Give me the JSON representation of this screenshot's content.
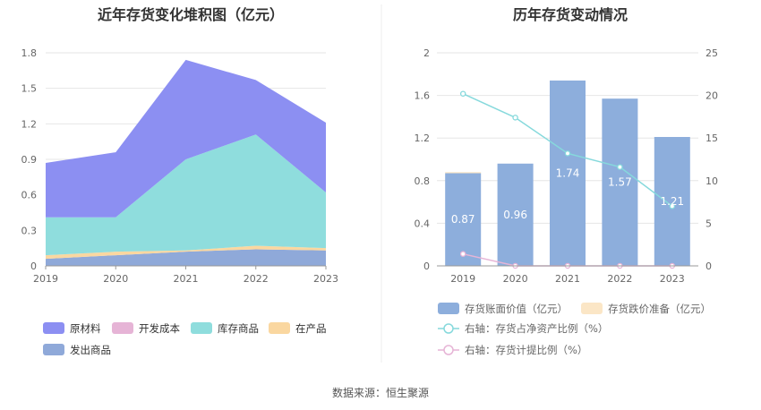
{
  "source_text": "数据来源：恒生聚源",
  "chart_data": [
    {
      "type": "area",
      "title": "近年存货变化堆积图（亿元）",
      "x": [
        "2019",
        "2020",
        "2021",
        "2022",
        "2023"
      ],
      "ylim": [
        0,
        1.8
      ],
      "yticks": [
        "0",
        "0.3",
        "0.6",
        "0.9",
        "1.2",
        "1.5",
        "1.8"
      ],
      "stacked": true,
      "grid": true,
      "legend_position": "bottom-left",
      "series": [
        {
          "name": "发出商品",
          "color": "#8fa9d9",
          "values": [
            0.06,
            0.09,
            0.12,
            0.14,
            0.13
          ]
        },
        {
          "name": "在产品",
          "color": "#fad7a0",
          "values": [
            0.03,
            0.03,
            0.01,
            0.03,
            0.02
          ]
        },
        {
          "name": "库存商品",
          "color": "#8fdddd",
          "values": [
            0.32,
            0.29,
            0.77,
            0.94,
            0.47
          ]
        },
        {
          "name": "开发成本",
          "color": "#e6b4d6",
          "values": [
            0.0,
            0.0,
            0.0,
            0.0,
            0.0
          ]
        },
        {
          "name": "原材料",
          "color": "#8c8ff2",
          "values": [
            0.46,
            0.55,
            0.84,
            0.46,
            0.59
          ]
        }
      ],
      "legend_order": [
        "原材料",
        "开发成本",
        "库存商品",
        "在产品",
        "发出商品"
      ]
    },
    {
      "type": "bar",
      "title": "历年存货变动情况",
      "categories": [
        "2019",
        "2020",
        "2021",
        "2022",
        "2023"
      ],
      "ylim": [
        0,
        2
      ],
      "yticks": [
        "0",
        "0.4",
        "0.8",
        "1.2",
        "1.6",
        "2"
      ],
      "y2lim": [
        0,
        25
      ],
      "y2ticks": [
        "0",
        "5",
        "10",
        "15",
        "20",
        "25"
      ],
      "grid": true,
      "legend_position": "bottom",
      "bar_series": [
        {
          "name": "存货账面价值（亿元）",
          "color": "#8daedc",
          "values": [
            0.87,
            0.96,
            1.74,
            1.57,
            1.21
          ],
          "labels": [
            "0.87",
            "0.96",
            "1.74",
            "1.57",
            "1.21"
          ]
        },
        {
          "name": "存货跌价准备（亿元）",
          "color": "#fbe6c6",
          "values": [
            0.01,
            0,
            0,
            0,
            0
          ]
        }
      ],
      "line_series": [
        {
          "name": "右轴：存货占净资产比例（%）",
          "color": "#86d9dc",
          "axis": "right",
          "values": [
            20.2,
            17.4,
            13.2,
            11.6,
            7.0
          ]
        },
        {
          "name": "右轴：存货计提比例（%）",
          "color": "#e6b4d6",
          "axis": "right",
          "values": [
            1.4,
            0.0,
            0.0,
            0.0,
            0.0
          ]
        }
      ]
    }
  ]
}
